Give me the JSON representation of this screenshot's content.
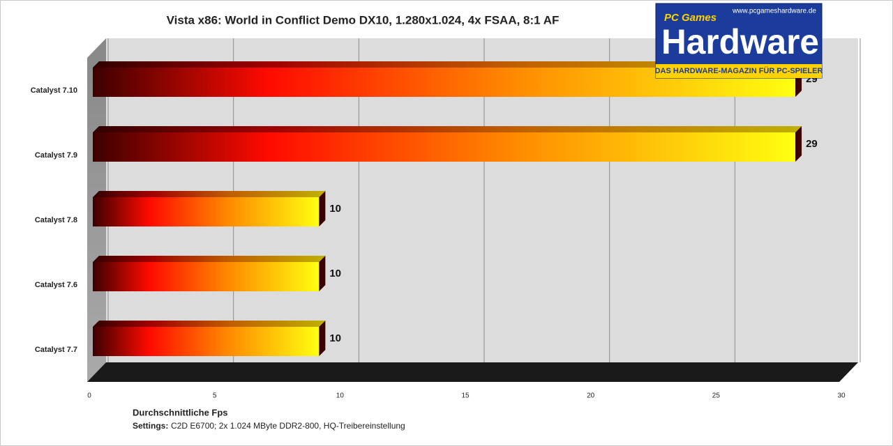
{
  "chart_data": {
    "type": "bar",
    "orientation": "horizontal",
    "title": "Vista x86: World in Conflict Demo DX10, 1.280x1.024, 4x FSAA, 8:1 AF",
    "categories": [
      "Catalyst 7.10",
      "Catalyst 7.9",
      "Catalyst 7.8",
      "Catalyst 7.6",
      "Catalyst 7.7"
    ],
    "values": [
      29,
      29,
      10,
      10,
      10
    ],
    "xlim": [
      0,
      30
    ],
    "xticks": [
      0,
      5,
      10,
      15,
      20,
      25,
      30
    ],
    "grid": true,
    "x_label": "Durchschnittliche Fps",
    "note": {
      "label": "Settings:",
      "text": "C2D E6700; 2x 1.024 MByte DDR2-800, HQ-Treibereinstellung"
    },
    "logo": {
      "url": "www.pcgameshardware.de",
      "brand": "PC Games",
      "name": "Hardware",
      "tagline": "DAS HARDWARE-MAGAZIN FÜR PC-SPIELER"
    }
  }
}
